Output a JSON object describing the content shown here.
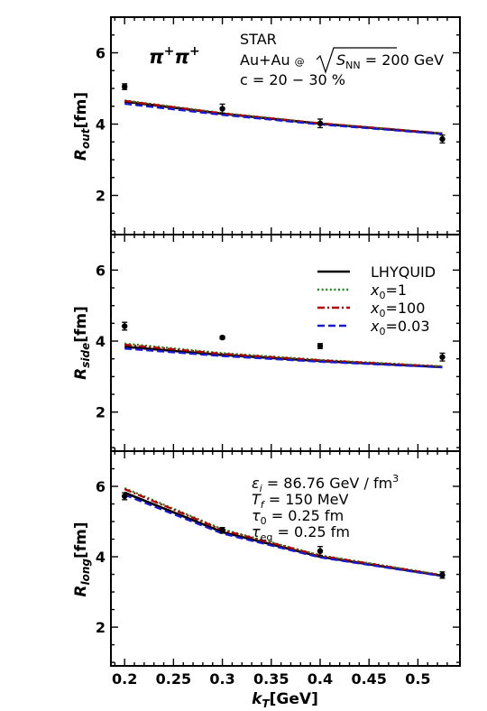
{
  "figure": {
    "xlabel": "k_T [GeV]",
    "x_ticks": [
      "0.2",
      "0.25",
      "0.3",
      "0.35",
      "0.4",
      "0.45",
      "0.5"
    ],
    "y_ticks": [
      "2",
      "4",
      "6"
    ]
  },
  "colors": {
    "lhyquid": "#000000",
    "x0_1": "#1a8a1a",
    "x0_100": "#b50000",
    "x0_003": "#1a1ad6",
    "data": "#000000"
  },
  "legend": {
    "placement": "top-right of middle panel",
    "entries": [
      {
        "key": "lhyquid",
        "label": "LHYQUID",
        "style": "solid"
      },
      {
        "key": "x0_1",
        "label": "x₀=1",
        "style": "dotted"
      },
      {
        "key": "x0_100",
        "label": "x₀=100",
        "style": "dashdot"
      },
      {
        "key": "x0_003",
        "label": "x₀=0.03",
        "style": "dashed"
      }
    ]
  },
  "annotations": {
    "particle": "π⁺π⁺",
    "experiment": "STAR",
    "system": "Au+Au @ √s_NN = 200 GeV",
    "centrality": "c = 20 − 30 %",
    "params": [
      "ε_i = 86.76 GeV / fm³",
      "T_f = 150 MeV",
      "τ₀ = 0.25 fm",
      "τ_eq = 0.25 fm"
    ]
  },
  "chart_data": [
    {
      "type": "line",
      "panel": "top",
      "ylabel": "R_out [fm]",
      "xlim": [
        0.186,
        0.543
      ],
      "ylim": [
        0.9,
        7.0
      ],
      "x": [
        0.2,
        0.3,
        0.4,
        0.525
      ],
      "series": [
        {
          "key": "lhyquid",
          "name": "LHYQUID",
          "values": [
            4.63,
            4.29,
            4.01,
            3.73
          ]
        },
        {
          "key": "x0_1",
          "name": "x₀=1",
          "values": [
            4.66,
            4.31,
            4.02,
            3.74
          ]
        },
        {
          "key": "x0_100",
          "name": "x₀=100",
          "values": [
            4.65,
            4.3,
            4.02,
            3.74
          ]
        },
        {
          "key": "x0_003",
          "name": "x₀=0.03",
          "values": [
            4.57,
            4.26,
            3.99,
            3.72
          ]
        }
      ],
      "data_points": {
        "name": "STAR",
        "x": [
          0.2,
          0.3,
          0.4,
          0.525
        ],
        "y": [
          5.05,
          4.43,
          4.02,
          3.58
        ],
        "yerr": [
          0.08,
          0.13,
          0.12,
          0.11
        ]
      }
    },
    {
      "type": "line",
      "panel": "middle",
      "ylabel": "R_side [fm]",
      "xlim": [
        0.186,
        0.543
      ],
      "ylim": [
        0.9,
        7.0
      ],
      "x": [
        0.2,
        0.3,
        0.4,
        0.525
      ],
      "series": [
        {
          "key": "lhyquid",
          "name": "LHYQUID",
          "values": [
            3.84,
            3.61,
            3.44,
            3.27
          ]
        },
        {
          "key": "x0_1",
          "name": "x₀=1",
          "values": [
            3.93,
            3.66,
            3.47,
            3.29
          ]
        },
        {
          "key": "x0_100",
          "name": "x₀=100",
          "values": [
            3.9,
            3.64,
            3.46,
            3.28
          ]
        },
        {
          "key": "x0_003",
          "name": "x₀=0.03",
          "values": [
            3.79,
            3.58,
            3.42,
            3.26
          ]
        }
      ],
      "data_points": {
        "name": "STAR",
        "x": [
          0.2,
          0.3,
          0.4,
          0.525
        ],
        "y": [
          4.42,
          4.1,
          3.86,
          3.55
        ],
        "yerr": [
          0.11,
          0.04,
          0.07,
          0.11
        ]
      }
    },
    {
      "type": "line",
      "panel": "bottom",
      "ylabel": "R_long [fm]",
      "xlim": [
        0.186,
        0.543
      ],
      "ylim": [
        0.9,
        7.0
      ],
      "x": [
        0.2,
        0.3,
        0.4,
        0.525
      ],
      "series": [
        {
          "key": "lhyquid",
          "name": "LHYQUID",
          "values": [
            5.82,
            4.7,
            4.0,
            3.46
          ]
        },
        {
          "key": "x0_1",
          "name": "x₀=1",
          "values": [
            5.95,
            4.78,
            4.04,
            3.48
          ]
        },
        {
          "key": "x0_100",
          "name": "x₀=100",
          "values": [
            5.92,
            4.76,
            4.03,
            3.47
          ]
        },
        {
          "key": "x0_003",
          "name": "x₀=0.03",
          "values": [
            5.76,
            4.66,
            3.98,
            3.45
          ]
        }
      ],
      "data_points": {
        "name": "STAR",
        "x": [
          0.2,
          0.3,
          0.4,
          0.525
        ],
        "y": [
          5.72,
          4.75,
          4.16,
          3.48
        ],
        "yerr": [
          0.1,
          0.08,
          0.13,
          0.09
        ]
      }
    }
  ]
}
